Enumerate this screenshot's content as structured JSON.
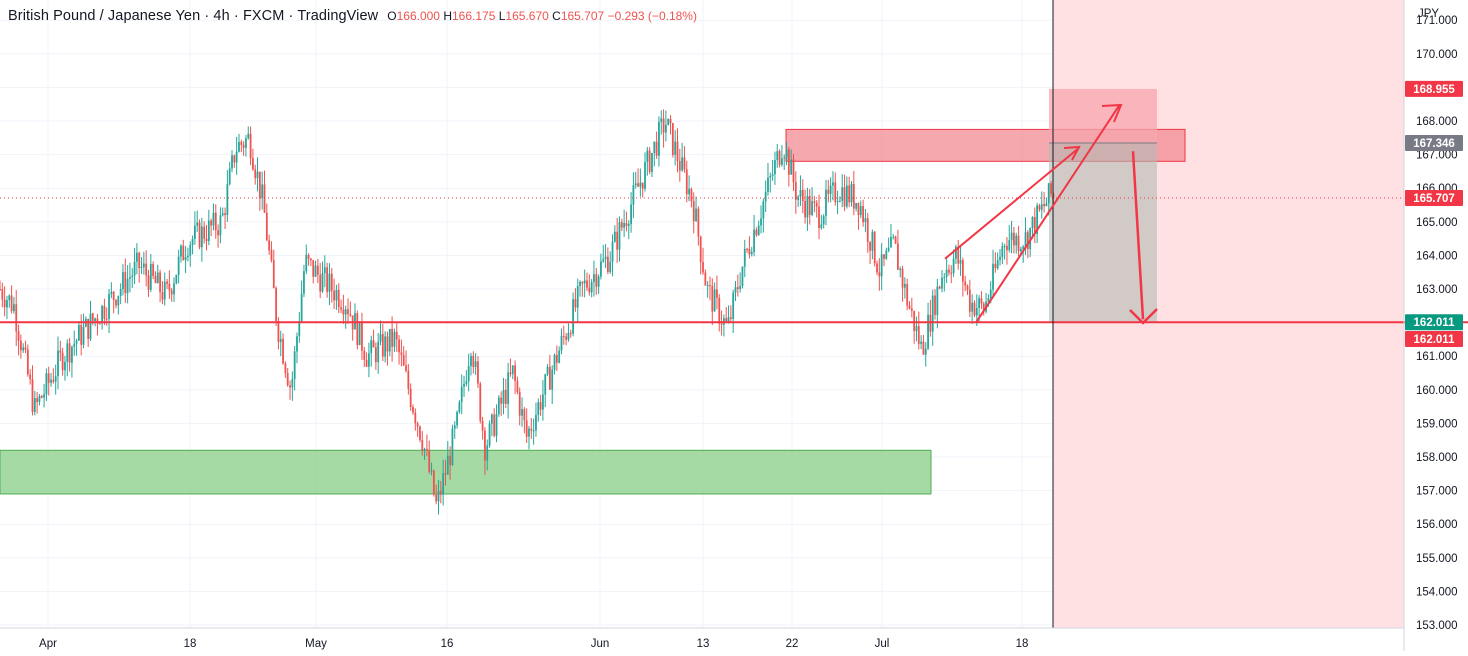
{
  "legend": {
    "title": "British Pound / Japanese Yen · 4h · FXCM · TradingView",
    "open_key": "O",
    "open": "166.000",
    "high_key": "H",
    "high": "166.175",
    "low_key": "L",
    "low": "165.670",
    "close_key": "C",
    "close": "165.707",
    "change": "−0.293 (−0.18%)"
  },
  "axis": {
    "currency": "JPY"
  },
  "colors": {
    "up": "#26a69a",
    "down": "#ef5350",
    "support_zone": "#8fd18f",
    "resistance_zone": "#f28b93",
    "drawing": "#f23645",
    "current_price_badge": "#f23645",
    "level_badge_green": "#089981",
    "stop_badge": "#f23645",
    "target_badge": "#787b86"
  },
  "chart_data": {
    "type": "candlestick",
    "symbol": "GBPJPY",
    "interval": "4h",
    "ylim": [
      153,
      171
    ],
    "yticks": [
      "153.000",
      "154.000",
      "155.000",
      "156.000",
      "157.000",
      "158.000",
      "159.000",
      "160.000",
      "161.000",
      "162.000",
      "163.000",
      "164.000",
      "165.000",
      "166.000",
      "167.000",
      "168.000",
      "169.000",
      "170.000",
      "171.000"
    ],
    "xticks": [
      "Apr",
      "18",
      "May",
      "16",
      "Jun",
      "13",
      "22",
      "Jul",
      "18"
    ],
    "price_key_points": [
      {
        "d": 0,
        "v": 163.0
      },
      {
        "d": 2,
        "v": 162.5
      },
      {
        "d": 5,
        "v": 159.4
      },
      {
        "d": 9,
        "v": 161.0
      },
      {
        "d": 14,
        "v": 162.2
      },
      {
        "d": 20,
        "v": 163.7
      },
      {
        "d": 24,
        "v": 162.8
      },
      {
        "d": 27,
        "v": 164.4
      },
      {
        "d": 32,
        "v": 165.0
      },
      {
        "d": 34,
        "v": 167.2
      },
      {
        "d": 36,
        "v": 167.5
      },
      {
        "d": 38,
        "v": 165.5
      },
      {
        "d": 40,
        "v": 162.0
      },
      {
        "d": 42,
        "v": 160.0
      },
      {
        "d": 44,
        "v": 163.8
      },
      {
        "d": 47,
        "v": 163.2
      },
      {
        "d": 50,
        "v": 162.6
      },
      {
        "d": 53,
        "v": 161.0
      },
      {
        "d": 57,
        "v": 161.5
      },
      {
        "d": 61,
        "v": 158.5
      },
      {
        "d": 63,
        "v": 156.5
      },
      {
        "d": 66,
        "v": 159.0
      },
      {
        "d": 68,
        "v": 161.5
      },
      {
        "d": 70,
        "v": 158.3
      },
      {
        "d": 74,
        "v": 160.5
      },
      {
        "d": 76,
        "v": 158.6
      },
      {
        "d": 80,
        "v": 160.8
      },
      {
        "d": 84,
        "v": 163.0
      },
      {
        "d": 88,
        "v": 164.0
      },
      {
        "d": 92,
        "v": 166.0
      },
      {
        "d": 96,
        "v": 168.0
      },
      {
        "d": 98,
        "v": 166.8
      },
      {
        "d": 100,
        "v": 165.6
      },
      {
        "d": 102,
        "v": 163.0
      },
      {
        "d": 105,
        "v": 161.8
      },
      {
        "d": 107,
        "v": 163.6
      },
      {
        "d": 110,
        "v": 165.5
      },
      {
        "d": 113,
        "v": 167.4
      },
      {
        "d": 115,
        "v": 165.8
      },
      {
        "d": 118,
        "v": 165.2
      },
      {
        "d": 121,
        "v": 166.0
      },
      {
        "d": 124,
        "v": 165.6
      },
      {
        "d": 127,
        "v": 163.5
      },
      {
        "d": 129,
        "v": 164.3
      },
      {
        "d": 131,
        "v": 162.6
      },
      {
        "d": 133,
        "v": 161.2
      },
      {
        "d": 136,
        "v": 163.5
      },
      {
        "d": 138,
        "v": 164.0
      },
      {
        "d": 140,
        "v": 162.6
      },
      {
        "d": 142,
        "v": 162.4
      },
      {
        "d": 145,
        "v": 164.5
      },
      {
        "d": 148,
        "v": 164.5
      },
      {
        "d": 151,
        "v": 165.6
      },
      {
        "d": 152,
        "v": 165.9
      }
    ],
    "last_price": 165.707,
    "levels": {
      "support_line": 162.011,
      "stop_level": 168.955,
      "entry_level": 167.346
    },
    "price_badges": [
      {
        "label": "168.955",
        "value": 168.955,
        "color": "#f23645"
      },
      {
        "label": "167.346",
        "value": 167.346,
        "color": "#787b86"
      },
      {
        "label": "165.707",
        "value": 165.707,
        "color": "#f23645"
      },
      {
        "label": "162.011",
        "value": 162.011,
        "color": "#089981"
      },
      {
        "label": "162.011",
        "value": 161.511,
        "color": "#f23645"
      }
    ],
    "zones": [
      {
        "kind": "support",
        "from_day": 0,
        "to_day": 135,
        "low": 156.9,
        "high": 158.2
      },
      {
        "kind": "resistance",
        "from_day": 114,
        "to_day": 172,
        "low": 166.8,
        "high": 167.75
      }
    ],
    "trade_box": {
      "from_day": 151,
      "to_day": 166,
      "entry": 167.346,
      "stop": 168.955,
      "target": 162.011
    }
  }
}
